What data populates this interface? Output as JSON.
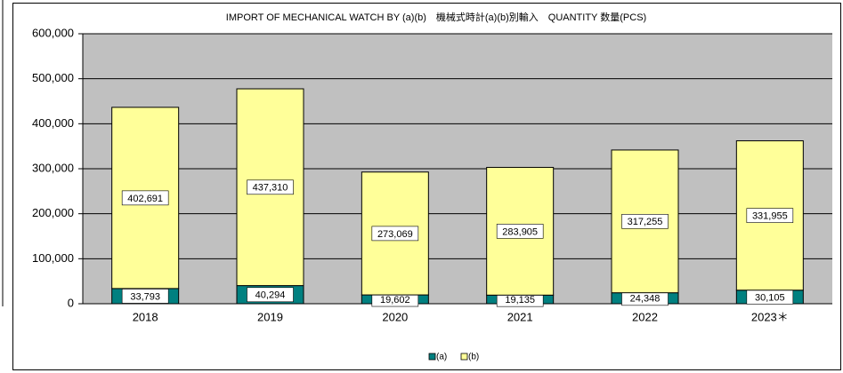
{
  "chart_data": {
    "type": "stacked_bar",
    "title": "IMPORT OF MECHANICAL WATCH BY (a)(b)　機械式時計(a)(b)別輸入　QUANTITY 数量(PCS)",
    "categories": [
      "2018",
      "2019",
      "2020",
      "2021",
      "2022",
      "2023＊"
    ],
    "series": [
      {
        "name": "(a)",
        "color": "#008080",
        "values": [
          33793,
          40294,
          19602,
          19135,
          24348,
          30105
        ],
        "value_labels": [
          "33,793",
          "40,294",
          "19,602",
          "19,135",
          "24,348",
          "30,105"
        ]
      },
      {
        "name": "(b)",
        "color": "#ffff99",
        "values": [
          402691,
          437310,
          273069,
          283905,
          317255,
          331955
        ],
        "value_labels": [
          "402,691",
          "437,310",
          "273,069",
          "283,905",
          "317,255",
          "331,955"
        ]
      }
    ],
    "ylim": [
      0,
      600000
    ],
    "yticks": [
      0,
      {
        "value": 100000,
        "label": "100,000"
      },
      {
        "value": 200000,
        "label": "200,000"
      },
      {
        "value": 300000,
        "label": "300,000"
      },
      {
        "value": 400000,
        "label": "400,000"
      },
      {
        "value": 500000,
        "label": "500,000"
      },
      {
        "value": 600000,
        "label": "600,000"
      }
    ],
    "grid": true,
    "legend": "bottom"
  }
}
